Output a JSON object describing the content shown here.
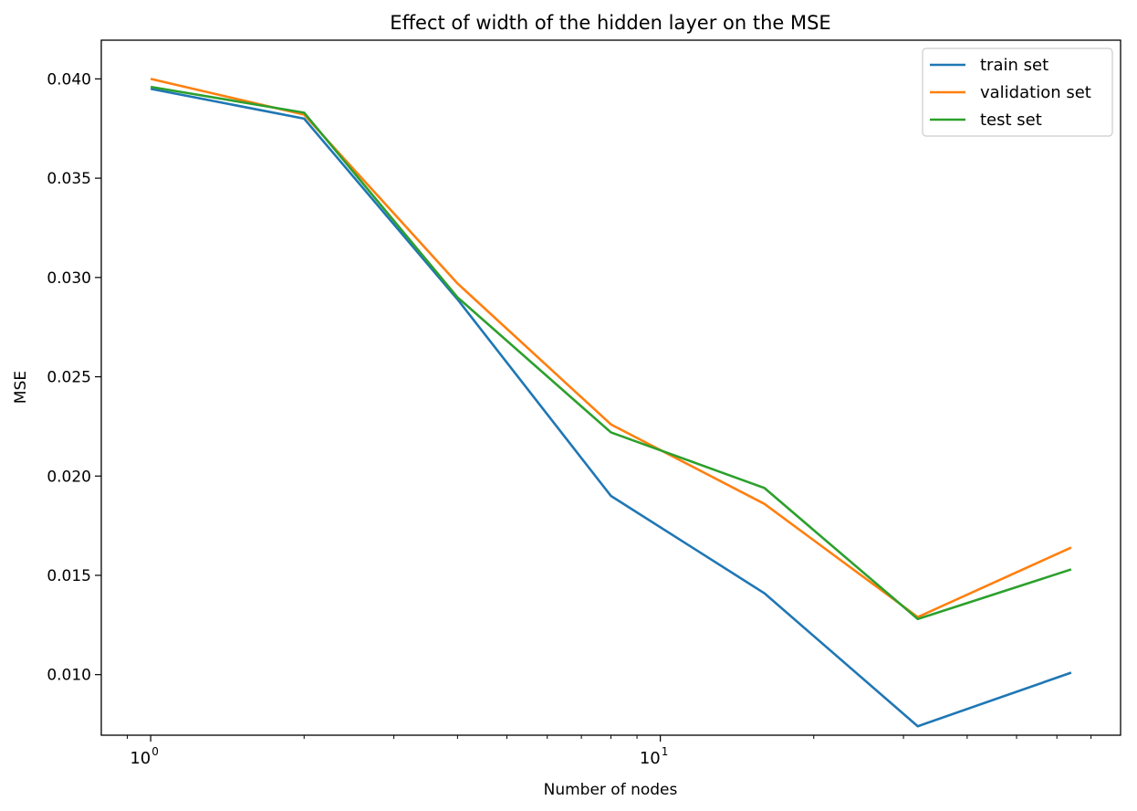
{
  "chart_data": {
    "type": "line",
    "title": "Effect of width of the hidden layer on the MSE",
    "xlabel": "Number of nodes",
    "ylabel": "MSE",
    "xscale": "log",
    "xlim": [
      0.8,
      80
    ],
    "ylim": [
      0.00695,
      0.04195
    ],
    "x": [
      1,
      2,
      4,
      8,
      16,
      32,
      64
    ],
    "x_ticks": [
      {
        "value": 1,
        "base": "10",
        "exp": "0"
      },
      {
        "value": 10,
        "base": "10",
        "exp": "1"
      }
    ],
    "y_ticks": [
      {
        "value": 0.01,
        "label": "0.010"
      },
      {
        "value": 0.015,
        "label": "0.015"
      },
      {
        "value": 0.02,
        "label": "0.020"
      },
      {
        "value": 0.025,
        "label": "0.025"
      },
      {
        "value": 0.03,
        "label": "0.030"
      },
      {
        "value": 0.035,
        "label": "0.035"
      },
      {
        "value": 0.04,
        "label": "0.040"
      }
    ],
    "series": [
      {
        "name": "train set",
        "color": "#1f77b4",
        "values": [
          0.0395,
          0.038,
          0.0289,
          0.019,
          0.0141,
          0.0074,
          0.0101
        ]
      },
      {
        "name": "validation set",
        "color": "#ff7f0e",
        "values": [
          0.04,
          0.0382,
          0.0297,
          0.0226,
          0.0186,
          0.0129,
          0.0164
        ]
      },
      {
        "name": "test set",
        "color": "#2ca02c",
        "values": [
          0.0396,
          0.0383,
          0.029,
          0.0222,
          0.0194,
          0.0128,
          0.0153
        ]
      }
    ],
    "grid": false,
    "legend": "top-right"
  }
}
